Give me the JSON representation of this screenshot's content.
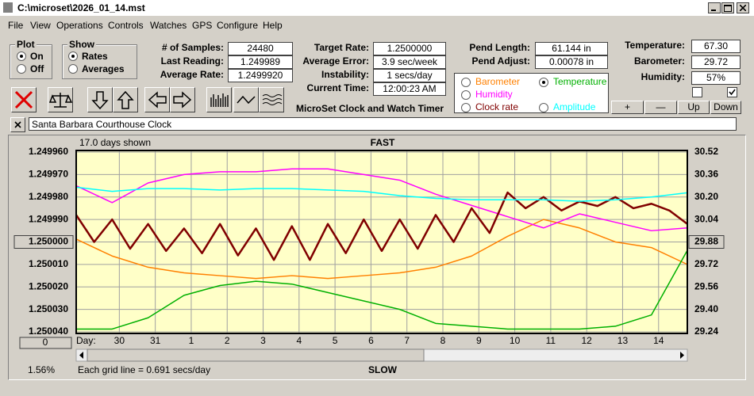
{
  "window": {
    "title": "C:\\microset\\2026_01_14.mst"
  },
  "menu": [
    "File",
    "View",
    "Operations",
    "Controls",
    "Watches",
    "GPS",
    "Configure",
    "Help"
  ],
  "plot_group": {
    "title": "Plot",
    "options": [
      "On",
      "Off"
    ],
    "selected": 0
  },
  "show_group": {
    "title": "Show",
    "options": [
      "Rates",
      "Averages"
    ],
    "selected": 0
  },
  "fields_left": [
    [
      "# of Samples:",
      "24480"
    ],
    [
      "Last Reading:",
      "1.249989"
    ],
    [
      "Average Rate:",
      "1.2499920"
    ]
  ],
  "fields_mid": [
    [
      "Target Rate:",
      "1.2500000"
    ],
    [
      "Average Error:",
      "3.9 sec/week"
    ],
    [
      "Instability:",
      "1 secs/day"
    ],
    [
      "Current Time:",
      "12:00:23 AM"
    ]
  ],
  "fields_pend": [
    [
      "Pend Length:",
      "61.144 in"
    ],
    [
      "Pend Adjust:",
      "0.00078 in"
    ]
  ],
  "fields_env": [
    [
      "Temperature:",
      "67.30"
    ],
    [
      "Barometer:",
      "29.72"
    ],
    [
      "Humidity:",
      "57%"
    ]
  ],
  "app_label": "MicroSet Clock and Watch Timer",
  "legend_selected": 1,
  "buttons": [
    "+",
    "—",
    "Up",
    "Down"
  ],
  "clock_name": "Santa Barbara Courthouse Clock",
  "panel": {
    "days_shown": "17.0 days shown",
    "top": "FAST",
    "bottom": "SLOW",
    "grid_note": "Each grid line = 0.691 secs/day",
    "percent": "1.56%",
    "day_label": "Day:",
    "zero_button": "0"
  },
  "chart_data": {
    "type": "line",
    "xlim": [
      0,
      17
    ],
    "xticks": [
      {
        "value": 1.2,
        "label": "30"
      },
      {
        "value": 2.2,
        "label": "31"
      },
      {
        "value": 3.2,
        "label": "1"
      },
      {
        "value": 4.2,
        "label": "2"
      },
      {
        "value": 5.2,
        "label": "3"
      },
      {
        "value": 6.2,
        "label": "4"
      },
      {
        "value": 7.2,
        "label": "5"
      },
      {
        "value": 8.2,
        "label": "6"
      },
      {
        "value": 9.2,
        "label": "7"
      },
      {
        "value": 10.2,
        "label": "8"
      },
      {
        "value": 11.2,
        "label": "9"
      },
      {
        "value": 12.2,
        "label": "10"
      },
      {
        "value": 13.2,
        "label": "11"
      },
      {
        "value": 14.2,
        "label": "12"
      },
      {
        "value": 15.2,
        "label": "13"
      },
      {
        "value": 16.2,
        "label": "14"
      }
    ],
    "ylim": [
      1.24996,
      1.25004
    ],
    "y_inverted": true,
    "yticks": [
      {
        "value": 1.24996,
        "label": "1.249960"
      },
      {
        "value": 1.24997,
        "label": "1.249970"
      },
      {
        "value": 1.24998,
        "label": "1.249980"
      },
      {
        "value": 1.24999,
        "label": "1.249990"
      },
      {
        "value": 1.25,
        "label": "1.250000"
      },
      {
        "value": 1.25001,
        "label": "1.250010"
      },
      {
        "value": 1.25002,
        "label": "1.250020"
      },
      {
        "value": 1.25003,
        "label": "1.250030"
      },
      {
        "value": 1.25004,
        "label": "1.250040"
      }
    ],
    "y2lim": [
      29.24,
      30.52
    ],
    "y2ticks": [
      30.52,
      30.36,
      {
        "value": 30.2,
        "label": "30.20"
      },
      30.04,
      29.88,
      29.72,
      29.56,
      {
        "value": 29.4,
        "label": "29.40"
      },
      29.24
    ],
    "grid": true,
    "series": [
      {
        "name": "Barometer",
        "color": "#ff8000",
        "axis": "y2",
        "x": [
          0,
          1,
          2,
          3,
          4,
          5,
          6,
          7,
          8,
          9,
          10,
          11,
          12,
          13,
          14,
          15,
          16,
          17
        ],
        "values": [
          29.9,
          29.78,
          29.7,
          29.66,
          29.64,
          29.62,
          29.64,
          29.62,
          29.64,
          29.66,
          29.7,
          29.78,
          29.92,
          30.04,
          29.98,
          29.88,
          29.84,
          29.72
        ]
      },
      {
        "name": "Temperature",
        "color": "#00b000",
        "axis": "y2",
        "x": [
          0,
          1,
          2,
          3,
          4,
          5,
          6,
          7,
          8,
          9,
          10,
          11,
          12,
          13,
          14,
          15,
          16,
          17
        ],
        "values": [
          29.26,
          29.26,
          29.34,
          29.5,
          29.57,
          29.6,
          29.58,
          29.52,
          29.46,
          29.4,
          29.3,
          29.28,
          29.26,
          29.26,
          29.26,
          29.28,
          29.36,
          29.82
        ]
      },
      {
        "name": "Humidity",
        "color": "#ff00ff",
        "axis": "y2",
        "x": [
          0,
          1,
          2,
          3,
          4,
          5,
          6,
          7,
          8,
          9,
          10,
          11,
          12,
          13,
          14,
          15,
          16,
          17
        ],
        "values": [
          30.28,
          30.16,
          30.3,
          30.36,
          30.38,
          30.38,
          30.4,
          30.4,
          30.36,
          30.32,
          30.22,
          30.14,
          30.06,
          29.98,
          30.08,
          30.02,
          29.96,
          29.98
        ]
      },
      {
        "name": "Clock rate",
        "color": "#800000",
        "axis": "y",
        "x": [
          0,
          0.5,
          1,
          1.5,
          2,
          2.5,
          3,
          3.5,
          4,
          4.5,
          5,
          5.5,
          6,
          6.5,
          7,
          7.5,
          8,
          8.5,
          9,
          9.5,
          10,
          10.5,
          11,
          11.5,
          12,
          12.5,
          13,
          13.5,
          14,
          14.5,
          15,
          15.5,
          16,
          16.5,
          17
        ],
        "values": [
          1.249988,
          1.25,
          1.24999,
          1.250003,
          1.249992,
          1.250004,
          1.249994,
          1.250005,
          1.249992,
          1.250006,
          1.249994,
          1.250008,
          1.249993,
          1.250008,
          1.249992,
          1.250005,
          1.24999,
          1.250004,
          1.24999,
          1.250003,
          1.249988,
          1.25,
          1.249985,
          1.249996,
          1.249978,
          1.249985,
          1.24998,
          1.249986,
          1.249982,
          1.249984,
          1.24998,
          1.249985,
          1.249983,
          1.249986,
          1.249992
        ]
      },
      {
        "name": "Amplitude",
        "color": "#00ffff",
        "axis": "y2",
        "x": [
          0,
          1,
          2,
          3,
          4,
          5,
          6,
          7,
          8,
          9,
          10,
          11,
          12,
          13,
          14,
          15,
          16,
          17
        ],
        "values": [
          30.27,
          30.24,
          30.26,
          30.26,
          30.25,
          30.26,
          30.26,
          30.25,
          30.24,
          30.21,
          30.19,
          30.18,
          30.18,
          30.18,
          30.17,
          30.18,
          30.2,
          30.23
        ]
      }
    ]
  }
}
